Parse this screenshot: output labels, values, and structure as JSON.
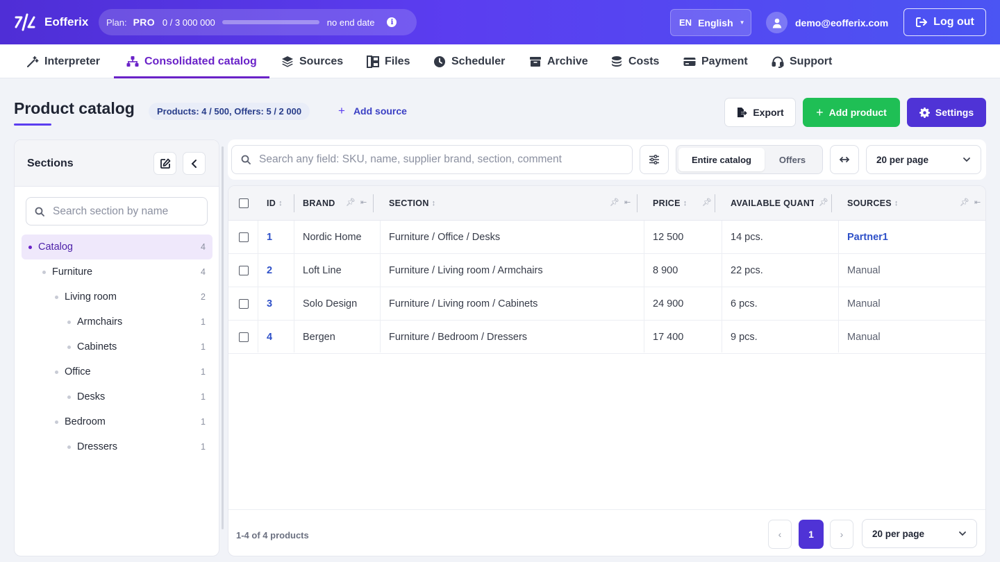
{
  "app": {
    "brand": "Eofferix",
    "plan_label": "Plan:",
    "plan_name": "PRO",
    "plan_usage": "0 / 3 000 000",
    "plan_progress": 0.0,
    "plan_end": "no end date",
    "plan_info_icon": "info-icon",
    "lang_code": "EN",
    "lang_name": "English",
    "user_email": "demo@eofferix.com",
    "logout_label": "Log out"
  },
  "nav": {
    "items": [
      {
        "label": "Interpreter",
        "icon": "magic-wand-icon"
      },
      {
        "label": "Consolidated catalog",
        "icon": "sitemap-icon",
        "active": true
      },
      {
        "label": "Sources",
        "icon": "layers-icon"
      },
      {
        "label": "Files",
        "icon": "files-icon"
      },
      {
        "label": "Scheduler",
        "icon": "clock-icon"
      },
      {
        "label": "Archive",
        "icon": "archive-icon"
      },
      {
        "label": "Costs",
        "icon": "coins-icon"
      },
      {
        "label": "Payment",
        "icon": "credit-card-icon"
      },
      {
        "label": "Support",
        "icon": "headset-icon"
      }
    ]
  },
  "header": {
    "title": "Product catalog",
    "counts": "Products: 4 / 500, Offers: 5 / 2 000",
    "add_source": "Add source",
    "export_label": "Export",
    "add_product_label": "Add product",
    "settings_label": "Settings"
  },
  "sidebar": {
    "title": "Sections",
    "search_placeholder": "Search section by name",
    "tree": [
      {
        "label": "Catalog",
        "count": "4",
        "active": true
      },
      {
        "label": "Furniture",
        "count": "4"
      },
      {
        "label": "Living room",
        "count": "2"
      },
      {
        "label": "Armchairs",
        "count": "1"
      },
      {
        "label": "Cabinets",
        "count": "1"
      },
      {
        "label": "Office",
        "count": "1"
      },
      {
        "label": "Desks",
        "count": "1"
      },
      {
        "label": "Bedroom",
        "count": "1"
      },
      {
        "label": "Dressers",
        "count": "1"
      }
    ]
  },
  "toolbar": {
    "search_placeholder": "Search any field: SKU, name, supplier brand, section, comment",
    "scope_options": [
      "Entire catalog",
      "Offers"
    ],
    "scope_selected": "Entire catalog",
    "per_page": "20 per page"
  },
  "table": {
    "columns": [
      "ID",
      "BRAND",
      "SECTION",
      "PRICE",
      "AVAILABLE QUANT",
      "SOURCES"
    ],
    "rows": [
      {
        "id": "1",
        "brand": "Nordic Home",
        "section": "Furniture / Office / Desks",
        "price": "12 500",
        "qty": "14 pcs.",
        "source": "Partner1"
      },
      {
        "id": "2",
        "brand": "Loft Line",
        "section": "Furniture / Living room / Armchairs",
        "price": "8 900",
        "qty": "22 pcs.",
        "source": "Manual"
      },
      {
        "id": "3",
        "brand": "Solo Design",
        "section": "Furniture / Living room / Cabinets",
        "price": "24 900",
        "qty": "6 pcs.",
        "source": "Manual"
      },
      {
        "id": "4",
        "brand": "Bergen",
        "section": "Furniture / Bedroom / Dressers",
        "price": "17 400",
        "qty": "9 pcs.",
        "source": "Manual"
      }
    ]
  },
  "footer": {
    "count": "1-4 of 4 products",
    "prev": "‹",
    "next": "›",
    "page": "1",
    "per_page": "20 per page"
  }
}
